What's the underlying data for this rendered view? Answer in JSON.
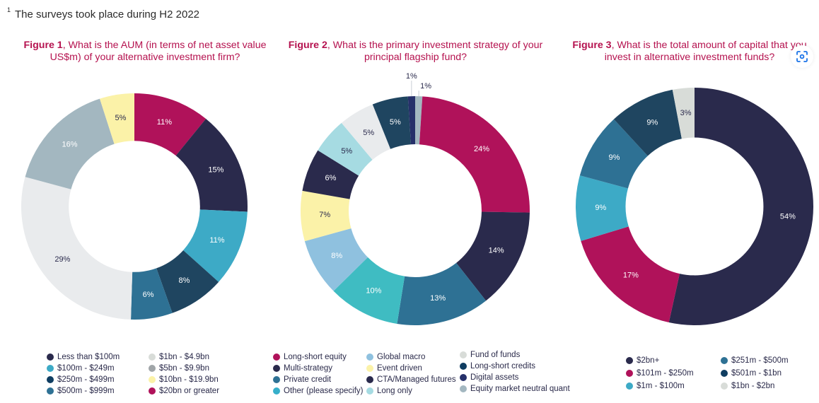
{
  "footnote": {
    "marker": "1",
    "text": "The surveys took place during H2 2022"
  },
  "chart_data": [
    {
      "type": "pie",
      "donut": true,
      "title_bold": "Figure 1",
      "title_rest": ", What is the AUM (in terms of net asset value US$m) of your alternative investment firm?",
      "slices": [
        {
          "label": "$20bn or greater",
          "value": 11,
          "text": "11%",
          "color": "#b0125a",
          "text_color": "#ffffff"
        },
        {
          "label": "Less than $100m",
          "value": 15,
          "text": "15%",
          "color": "#2a2a4c",
          "text_color": "#ffffff"
        },
        {
          "label": "$100m - $249m",
          "value": 11,
          "text": "11%",
          "color": "#3daac6",
          "text_color": "#ffffff"
        },
        {
          "label": "$250m - $499m",
          "value": 8,
          "text": "8%",
          "color": "#1f4560",
          "text_color": "#ffffff"
        },
        {
          "label": "$500m - $999m",
          "value": 6,
          "text": "6%",
          "color": "#2e7194",
          "text_color": "#ffffff"
        },
        {
          "label": "$1bn - $4.9bn",
          "value": 29,
          "text": "29%",
          "color": "#e9ebed",
          "text_color": "#2a2a4c"
        },
        {
          "label": "$5bn - $9.9bn",
          "value": 16,
          "text": "16%",
          "color": "#a3b7c0",
          "text_color": "#ffffff"
        },
        {
          "label": "$10bn - $19.9bn",
          "value": 5,
          "text": "5%",
          "color": "#fbf2a8",
          "text_color": "#2a2a4c"
        }
      ],
      "legend": [
        [
          "Less than $100m",
          "$100m - $249m",
          "$250m - $499m",
          "$500m - $999m"
        ],
        [
          "$1bn - $4.9bn",
          "$5bn - $9.9bn",
          "$10bn - $19.9bn",
          "$20bn or greater"
        ]
      ],
      "legend_colors": [
        [
          "#2a2a4c",
          "#3daac6",
          "#0f3d61",
          "#2e7194"
        ],
        [
          "#d8dcd8",
          "#a0a5a8",
          "#fbf2a8",
          "#b0125a"
        ]
      ]
    },
    {
      "type": "pie",
      "donut": true,
      "title_bold": "Figure 2",
      "title_rest": ", What is the primary investment strategy of your principal flagship fund?",
      "slices": [
        {
          "label": "Equity market neutral quant",
          "value": 1,
          "text": "1%",
          "color": "#a3b7c0",
          "text_color": "#2a2a4c",
          "outside": true
        },
        {
          "label": "Long-short equity",
          "value": 24,
          "text": "24%",
          "color": "#b0125a",
          "text_color": "#ffffff"
        },
        {
          "label": "Multi-strategy",
          "value": 14,
          "text": "14%",
          "color": "#2a2a4c",
          "text_color": "#ffffff"
        },
        {
          "label": "Private credit",
          "value": 13,
          "text": "13%",
          "color": "#2e7194",
          "text_color": "#ffffff"
        },
        {
          "label": "Other (please specify)",
          "value": 10,
          "text": "10%",
          "color": "#3fbcc2",
          "text_color": "#ffffff"
        },
        {
          "label": "Global macro",
          "value": 8,
          "text": "8%",
          "color": "#8fc1df",
          "text_color": "#ffffff"
        },
        {
          "label": "Event driven",
          "value": 7,
          "text": "7%",
          "color": "#fbf2a8",
          "text_color": "#2a2a4c"
        },
        {
          "label": "CTA/Managed futures",
          "value": 6,
          "text": "6%",
          "color": "#2a2a4c",
          "text_color": "#ffffff"
        },
        {
          "label": "Long only",
          "value": 5,
          "text": "5%",
          "color": "#a6dbe2",
          "text_color": "#2a2a4c"
        },
        {
          "label": "Fund of funds",
          "value": 5,
          "text": "5%",
          "color": "#e9ebed",
          "text_color": "#2a2a4c"
        },
        {
          "label": "Long-short credits",
          "value": 5,
          "text": "5%",
          "color": "#1f4560",
          "text_color": "#ffffff"
        },
        {
          "label": "Digital assets",
          "value": 1,
          "text": "1%",
          "color": "#26306a",
          "text_color": "#2a2a4c",
          "outside": true
        }
      ],
      "legend": [
        [
          "Long-short equity",
          "Multi-strategy",
          "Private credit",
          "Other (please specify)"
        ],
        [
          "Global macro",
          "Event driven",
          "CTA/Managed futures",
          "Long only"
        ],
        [
          "Fund of funds",
          "Long-short credits",
          "Digital assets",
          "Equity market neutral quant"
        ]
      ],
      "legend_colors": [
        [
          "#b0125a",
          "#2a2a4c",
          "#2e7194",
          "#36afca"
        ],
        [
          "#8fc1df",
          "#fbf2a8",
          "#2a2a4c",
          "#a6dbe2"
        ],
        [
          "#d8dcd8",
          "#0f3d61",
          "#26306a",
          "#a3b7c0"
        ]
      ]
    },
    {
      "type": "pie",
      "donut": true,
      "title_bold": "Figure 3",
      "title_rest": ", What is the total amount of capital that you invest in alternative investment funds?",
      "slices": [
        {
          "label": "$2bn+",
          "value": 54,
          "text": "54%",
          "color": "#2a2a4c",
          "text_color": "#ffffff"
        },
        {
          "label": "$101m - $250m",
          "value": 17,
          "text": "17%",
          "color": "#b0125a",
          "text_color": "#ffffff"
        },
        {
          "label": "$1m - $100m",
          "value": 9,
          "text": "9%",
          "color": "#3daac6",
          "text_color": "#ffffff"
        },
        {
          "label": "$251m - $500m",
          "value": 9,
          "text": "9%",
          "color": "#2e7194",
          "text_color": "#ffffff"
        },
        {
          "label": "$501m - $1bn",
          "value": 9,
          "text": "9%",
          "color": "#1f4560",
          "text_color": "#ffffff"
        },
        {
          "label": "$1bn - $2bn",
          "value": 3,
          "text": "3%",
          "color": "#d8dcd8",
          "text_color": "#2a2a4c"
        }
      ],
      "legend": [
        [
          "$2bn+",
          "$101m - $250m",
          "$1m - $100m"
        ],
        [
          "$251m - $500m",
          "$501m - $1bn",
          "$1bn - $2bn"
        ]
      ],
      "legend_colors": [
        [
          "#2a2a4c",
          "#b0125a",
          "#3daac6"
        ],
        [
          "#2e7194",
          "#0f3d61",
          "#d8dcd8"
        ]
      ]
    }
  ],
  "overlay": {
    "icon": "scan-icon",
    "color": "#1a73e8"
  }
}
